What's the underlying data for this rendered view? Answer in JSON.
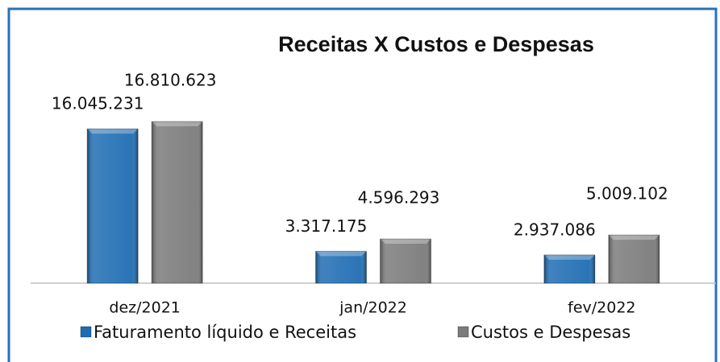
{
  "chart_data": {
    "type": "bar",
    "title": "Receitas X Custos e Despesas",
    "categories": [
      "dez/2021",
      "jan/2022",
      "fev/2022"
    ],
    "series": [
      {
        "name": "Faturamento líquido e Receitas",
        "color": "#1f6db3",
        "values": [
          16045231,
          3317175,
          2937086
        ],
        "value_labels": [
          "16.045.231",
          "3.317.175",
          "2.937.086"
        ]
      },
      {
        "name": "Custos e Despesas",
        "color": "#7b7b7b",
        "values": [
          16810623,
          4596293,
          5009102
        ],
        "value_labels": [
          "16.810.623",
          "4.596.293",
          "5.009.102"
        ]
      }
    ],
    "legend": "bottom"
  }
}
